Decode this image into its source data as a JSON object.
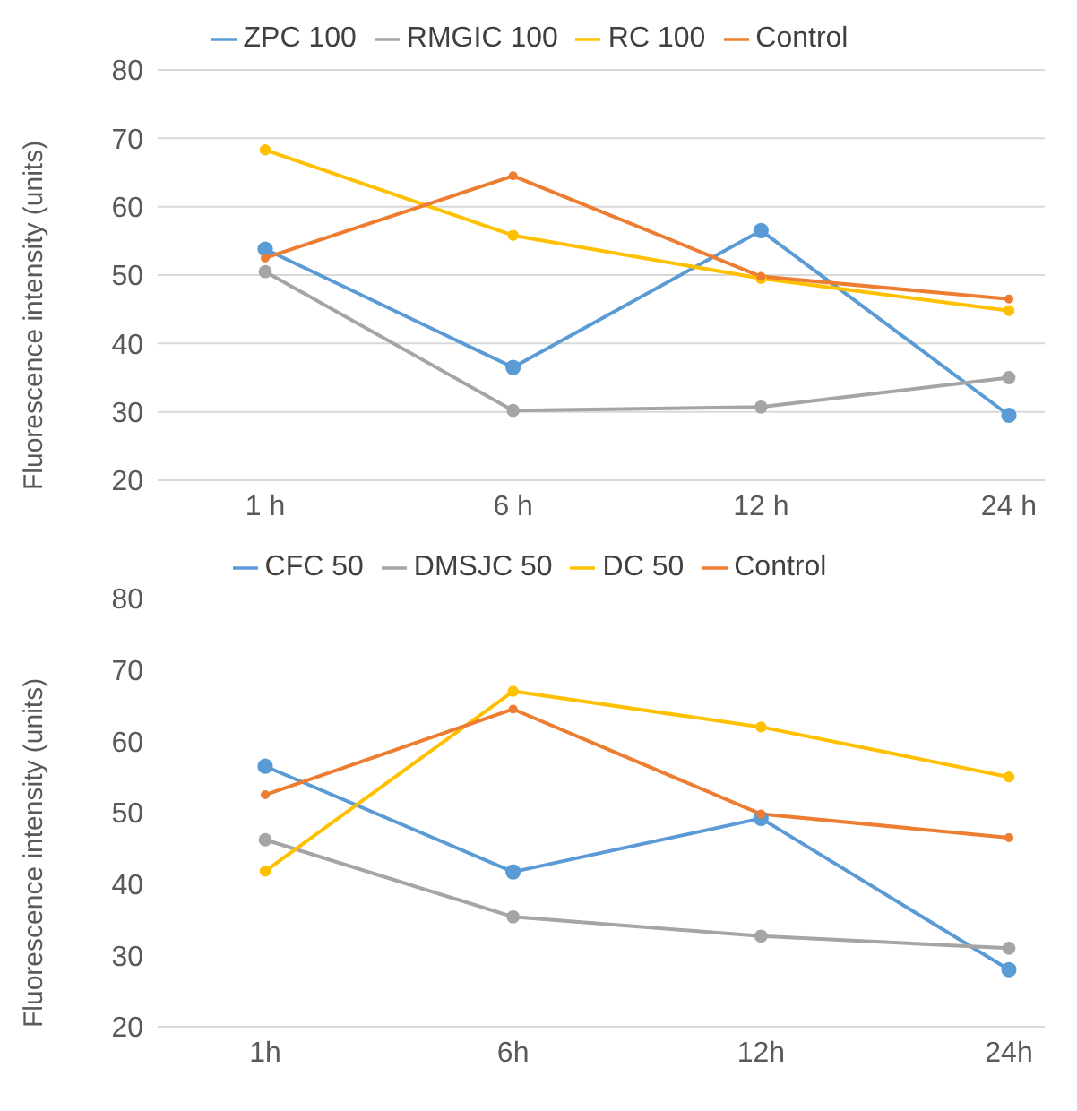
{
  "chart_data": [
    {
      "type": "line",
      "ylabel": "Fluorescence intensity (units)",
      "categories": [
        "1 h",
        "6 h",
        "12 h",
        "24 h"
      ],
      "series": [
        {
          "name": "ZPC 100",
          "color": "#5b9bd5",
          "values": [
            53.8,
            36.5,
            56.5,
            29.5
          ]
        },
        {
          "name": "RMGIC 100",
          "color": "#a5a5a5",
          "values": [
            50.5,
            30.2,
            30.7,
            35
          ]
        },
        {
          "name": "RC 100",
          "color": "#ffc000",
          "values": [
            68.3,
            55.8,
            49.5,
            44.8
          ]
        },
        {
          "name": "Control",
          "color": "#ed7d31",
          "values": [
            52.5,
            64.5,
            49.8,
            46.5
          ]
        }
      ],
      "ylim": [
        20,
        80
      ],
      "yticks": [
        20,
        30,
        40,
        50,
        60,
        70,
        80
      ],
      "grid": "y",
      "legend": "top",
      "marker": "circle",
      "line_style": "solid"
    },
    {
      "type": "line",
      "ylabel": "Fluorescence intensity (units)",
      "categories": [
        "1h",
        "6h",
        "12h",
        "24h"
      ],
      "series": [
        {
          "name": "CFC 50",
          "color": "#5b9bd5",
          "values": [
            56.5,
            41.7,
            49.2,
            28
          ]
        },
        {
          "name": "DMSJC 50",
          "color": "#a5a5a5",
          "values": [
            46.2,
            35.4,
            32.7,
            31
          ]
        },
        {
          "name": "DC 50",
          "color": "#ffc000",
          "values": [
            41.8,
            67,
            62,
            55
          ]
        },
        {
          "name": "Control",
          "color": "#ed7d31",
          "values": [
            52.5,
            64.5,
            49.8,
            46.5
          ]
        }
      ],
      "ylim": [
        20,
        80
      ],
      "yticks": [
        20,
        30,
        40,
        50,
        60,
        70,
        80
      ],
      "grid": false,
      "legend": "top",
      "marker": "circle",
      "line_style": "solid"
    }
  ]
}
